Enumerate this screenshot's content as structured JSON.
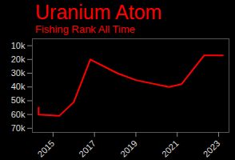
{
  "chart_data": {
    "type": "line",
    "title": "Uranium Atom",
    "subtitle": "Fishing Rank All Time",
    "x": [
      2014.3,
      2014.3,
      2015.3,
      2016.0,
      2016.8,
      2018.1,
      2019.0,
      2020.6,
      2021.2,
      2022.3,
      2023.2
    ],
    "values": [
      55000,
      60000,
      61000,
      51000,
      20000,
      30000,
      35000,
      40000,
      38000,
      17000,
      17000
    ],
    "color": "#ff0000",
    "xlim": [
      2014,
      2023.5
    ],
    "xticks": [
      2015,
      2017,
      2019,
      2021,
      2023
    ],
    "ylim": [
      5000,
      73000
    ],
    "yticks": [
      {
        "value": 10000,
        "label": "10k"
      },
      {
        "value": 20000,
        "label": "20k"
      },
      {
        "value": 30000,
        "label": "30k"
      },
      {
        "value": 40000,
        "label": "40k"
      },
      {
        "value": 50000,
        "label": "50k"
      },
      {
        "value": 60000,
        "label": "60k"
      },
      {
        "value": 70000,
        "label": "70k"
      }
    ],
    "grid": false
  }
}
